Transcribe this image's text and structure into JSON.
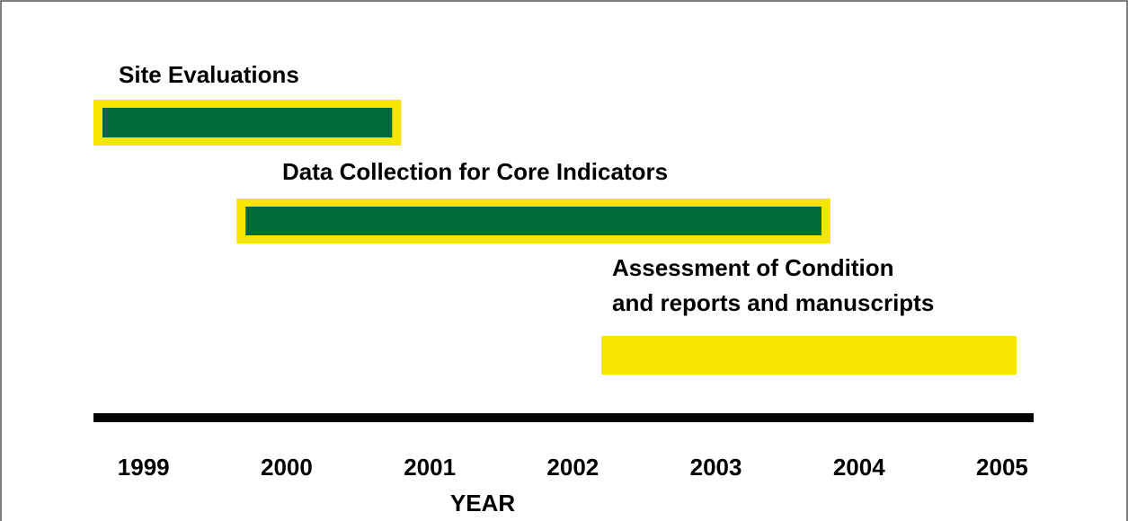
{
  "chart_data": {
    "type": "timeline",
    "tasks": [
      {
        "label": [
          "Site Evaluations"
        ],
        "start": 1998.65,
        "end": 2000.8,
        "color": "#006a3a",
        "outline": "#f5e600"
      },
      {
        "label": [
          "Data Collection for Core Indicators"
        ],
        "start": 1999.65,
        "end": 2003.8,
        "color": "#006a3a",
        "outline": "#f5e600"
      },
      {
        "label": [
          "Assessment of Condition",
          "and reports and manuscripts"
        ],
        "start": 2002.2,
        "end": 2005.1,
        "color": "#f5e600",
        "outline": "#f5e600"
      }
    ],
    "xlabel": "YEAR",
    "xlim": [
      1998.65,
      2005.22
    ],
    "xticks": [
      1999,
      2000,
      2001,
      2002,
      2003,
      2004,
      2005
    ]
  }
}
